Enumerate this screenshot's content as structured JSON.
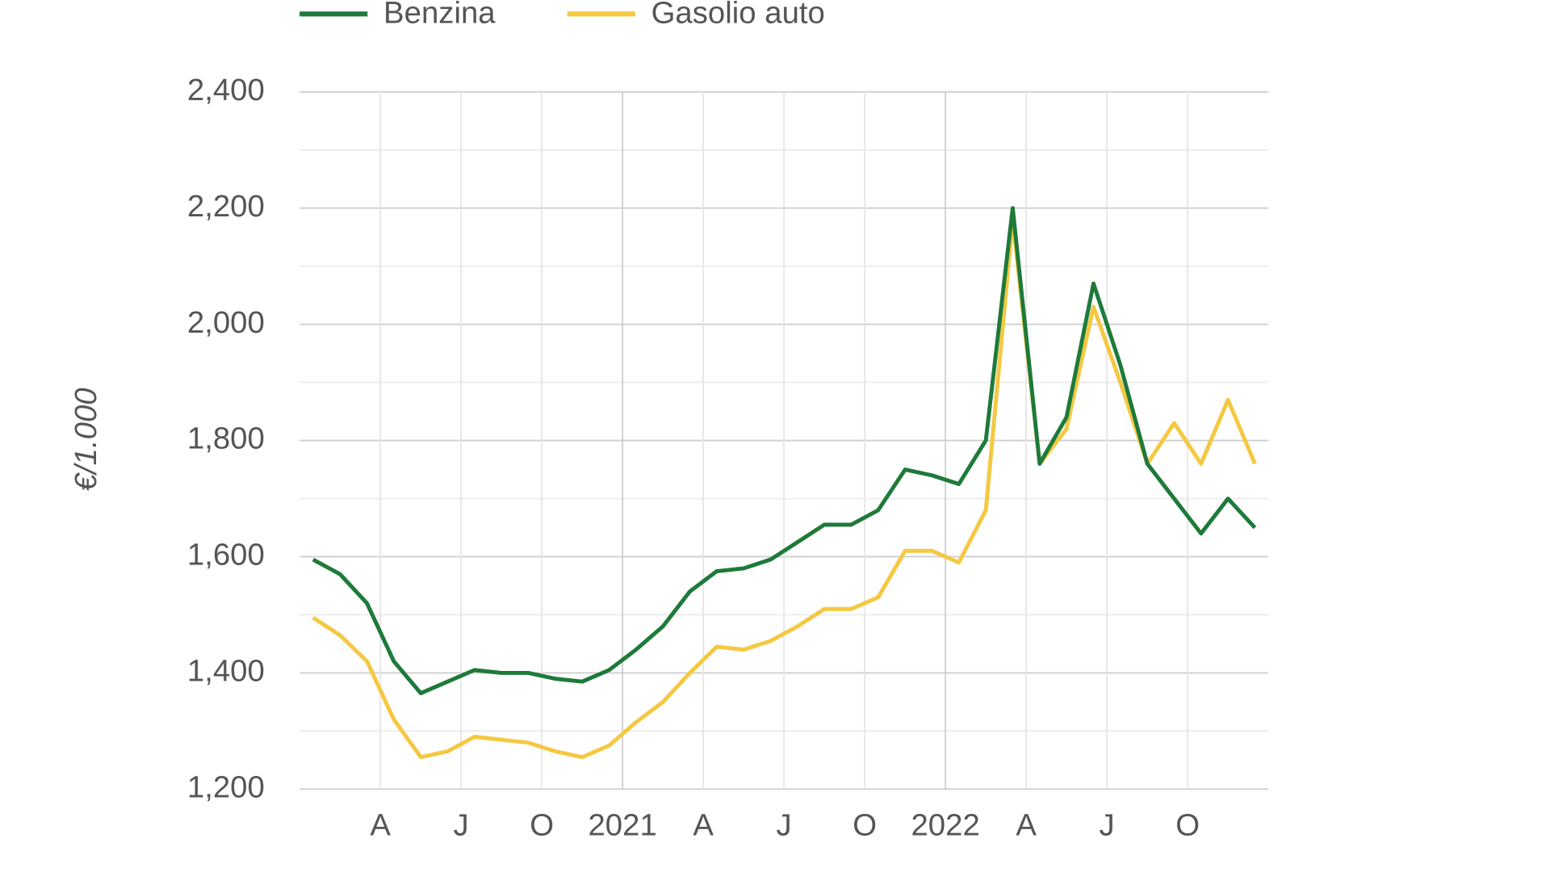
{
  "chart_data": {
    "type": "line",
    "y_label": "€/1.000",
    "x": [
      "2020-01",
      "2020-02",
      "2020-03",
      "2020-04",
      "2020-05",
      "2020-06",
      "2020-07",
      "2020-08",
      "2020-09",
      "2020-10",
      "2020-11",
      "2020-12",
      "2021-01",
      "2021-02",
      "2021-03",
      "2021-04",
      "2021-05",
      "2021-06",
      "2021-07",
      "2021-08",
      "2021-09",
      "2021-10",
      "2021-11",
      "2021-12",
      "2022-01",
      "2022-02",
      "2022-03",
      "2022-04",
      "2022-05",
      "2022-06",
      "2022-07",
      "2022-08",
      "2022-09",
      "2022-10",
      "2022-11",
      "2022-12"
    ],
    "series": [
      {
        "name": "Benzina",
        "color": "#1e7a3a",
        "values": [
          1595,
          1570,
          1520,
          1420,
          1365,
          1385,
          1405,
          1400,
          1400,
          1390,
          1385,
          1405,
          1440,
          1480,
          1540,
          1575,
          1580,
          1595,
          1625,
          1655,
          1655,
          1680,
          1750,
          1740,
          1725,
          1800,
          2200,
          1760,
          1840,
          2070,
          1930,
          1760,
          1700,
          1640,
          1700,
          1650
        ]
      },
      {
        "name": "Gasolio auto",
        "color": "#f5c842",
        "values": [
          1495,
          1465,
          1420,
          1320,
          1255,
          1265,
          1290,
          1285,
          1280,
          1265,
          1255,
          1275,
          1315,
          1350,
          1400,
          1445,
          1440,
          1455,
          1480,
          1510,
          1510,
          1530,
          1610,
          1610,
          1590,
          1680,
          2180,
          1760,
          1820,
          2030,
          1900,
          1760,
          1830,
          1760,
          1870,
          1760
        ]
      }
    ],
    "xlim": [
      "2020-01",
      "2022-12"
    ],
    "xticks": [
      {
        "value": "2020-04",
        "label": "A"
      },
      {
        "value": "2020-07",
        "label": "J"
      },
      {
        "value": "2020-10",
        "label": "O"
      },
      {
        "value": "2021-01",
        "label": "2021"
      },
      {
        "value": "2021-04",
        "label": "A"
      },
      {
        "value": "2021-07",
        "label": "J"
      },
      {
        "value": "2021-10",
        "label": "O"
      },
      {
        "value": "2022-01",
        "label": "2022"
      },
      {
        "value": "2022-04",
        "label": "A"
      },
      {
        "value": "2022-07",
        "label": "J"
      },
      {
        "value": "2022-10",
        "label": "O"
      }
    ],
    "ylim": [
      1200,
      2400
    ],
    "yticks": [
      {
        "value": 1200,
        "label": "1,200"
      },
      {
        "value": 1400,
        "label": "1,400"
      },
      {
        "value": 1600,
        "label": "1,600"
      },
      {
        "value": 1800,
        "label": "1,800"
      },
      {
        "value": 2000,
        "label": "2,000"
      },
      {
        "value": 2200,
        "label": "2,200"
      },
      {
        "value": 2400,
        "label": "2,400"
      }
    ],
    "minor_yticks": [
      1300,
      1500,
      1700,
      1900,
      2100,
      2300
    ],
    "grid": true
  }
}
